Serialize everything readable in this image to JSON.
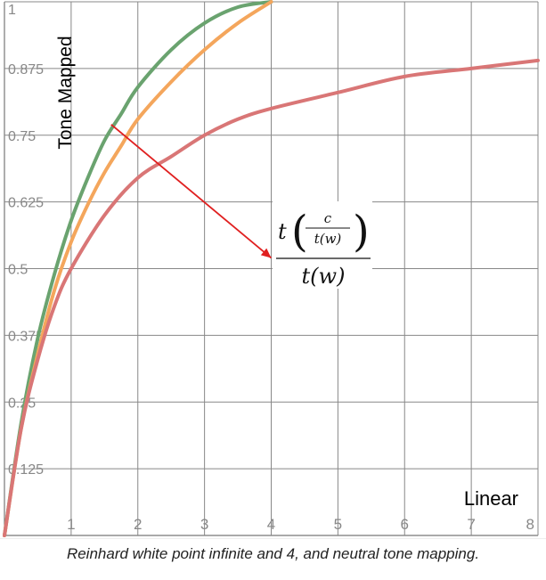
{
  "chart_data": {
    "type": "line",
    "xlabel": "Linear",
    "ylabel": "Tone Mapped",
    "xlim": [
      0,
      8
    ],
    "ylim": [
      0,
      1
    ],
    "x_ticks": [
      "1",
      "2",
      "3",
      "4",
      "5",
      "6",
      "7",
      "8"
    ],
    "x_tick_values": [
      1,
      2,
      3,
      4,
      5,
      6,
      7,
      8
    ],
    "y_ticks": [
      "0.125",
      "0.25",
      "0.375",
      "0.5",
      "0.625",
      "0.75",
      "0.875",
      "1"
    ],
    "y_tick_values": [
      0.125,
      0.25,
      0.375,
      0.5,
      0.625,
      0.75,
      0.875,
      1
    ],
    "grid": true,
    "series": [
      {
        "color": "#6aa36f",
        "x": [
          0,
          0.25,
          0.5,
          0.75,
          1,
          1.25,
          1.5,
          1.75,
          2,
          2.5,
          3,
          3.5,
          4
        ],
        "y": [
          0,
          0.21,
          0.37,
          0.49,
          0.59,
          0.67,
          0.74,
          0.79,
          0.84,
          0.91,
          0.96,
          0.99,
          1
        ]
      },
      {
        "color": "#f4a65c",
        "x": [
          0,
          0.25,
          0.5,
          0.75,
          1,
          1.25,
          1.5,
          1.75,
          2,
          2.5,
          3,
          3.5,
          4
        ],
        "y": [
          0,
          0.2,
          0.34,
          0.46,
          0.55,
          0.62,
          0.68,
          0.73,
          0.78,
          0.85,
          0.91,
          0.96,
          1
        ]
      },
      {
        "color": "#d97676",
        "x": [
          0,
          0.25,
          0.5,
          0.75,
          1,
          1.5,
          2,
          2.5,
          3,
          3.5,
          4,
          5,
          6,
          7,
          8
        ],
        "y": [
          0,
          0.2,
          0.33,
          0.43,
          0.5,
          0.6,
          0.67,
          0.71,
          0.75,
          0.78,
          0.8,
          0.83,
          0.86,
          0.875,
          0.89
        ]
      }
    ],
    "annotation": {
      "arrow_from": [
        1.6,
        0.77
      ],
      "arrow_to": [
        4.0,
        0.52
      ],
      "arrow_color": "#e02020",
      "formula": {
        "t": "t",
        "c": "c",
        "inner_den": "t(w)",
        "outer_den": "t(w)"
      }
    }
  },
  "caption": "Reinhard white point infinite and 4, and neutral tone mapping."
}
